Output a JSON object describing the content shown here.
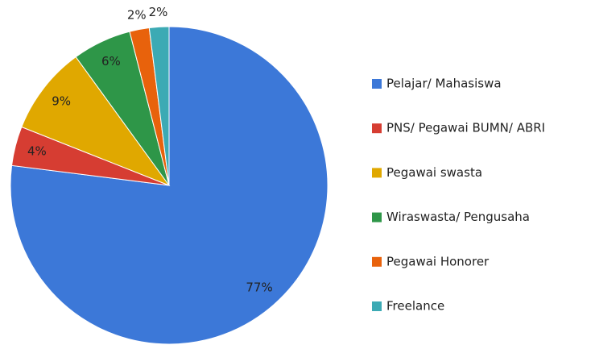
{
  "chart_data": {
    "type": "pie",
    "categories": [
      "Pelajar/ Mahasiswa",
      "PNS/ Pegawai BUMN/ ABRI",
      "Pegawai swasta",
      "Wiraswasta/ Pengusaha",
      "Pegawai Honorer",
      "Freelance"
    ],
    "values": [
      77,
      4,
      9,
      6,
      2,
      2
    ],
    "value_labels": [
      "77%",
      "4%",
      "9%",
      "6%",
      "2%",
      "2%"
    ],
    "colors": [
      "#3c78d8",
      "#d63d32",
      "#e0a800",
      "#2e9648",
      "#e8620c",
      "#3caab4"
    ],
    "legend": "right"
  }
}
